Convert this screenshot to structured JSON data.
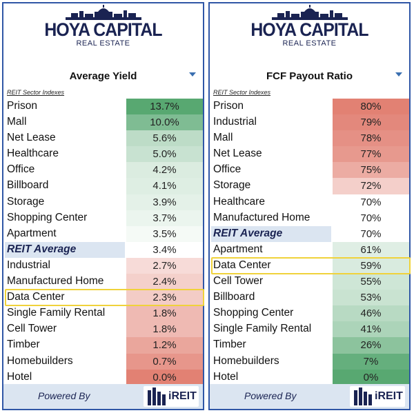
{
  "brand": {
    "title": "HOYA CAPITAL",
    "subtitle": "REAL ESTATE",
    "powered_by": "Powered By",
    "ireit": "iREIT"
  },
  "section_label": "REIT Sector Indexes",
  "colors": {
    "border": "#2f56a6",
    "green_max": "#4fa36a",
    "red_max": "#e07a6c",
    "avg_row": "#dbe5f1",
    "highlight": "#f0d23a",
    "footer": "#dbe5f1"
  },
  "chart_data": [
    {
      "type": "table",
      "title": "Average Yield",
      "color_scale": "high-green",
      "rows": [
        {
          "name": "Prison",
          "value": 13.7,
          "label": "13.7%"
        },
        {
          "name": "Mall",
          "value": 10.0,
          "label": "10.0%"
        },
        {
          "name": "Net Lease",
          "value": 5.6,
          "label": "5.6%"
        },
        {
          "name": "Healthcare",
          "value": 5.0,
          "label": "5.0%"
        },
        {
          "name": "Office",
          "value": 4.2,
          "label": "4.2%"
        },
        {
          "name": "Billboard",
          "value": 4.1,
          "label": "4.1%"
        },
        {
          "name": "Storage",
          "value": 3.9,
          "label": "3.9%"
        },
        {
          "name": "Shopping Center",
          "value": 3.7,
          "label": "3.7%"
        },
        {
          "name": "Apartment",
          "value": 3.5,
          "label": "3.5%"
        },
        {
          "name": "REIT Average",
          "value": 3.4,
          "label": "3.4%",
          "average": true
        },
        {
          "name": "Industrial",
          "value": 2.7,
          "label": "2.7%"
        },
        {
          "name": "Manufactured Home",
          "value": 2.4,
          "label": "2.4%"
        },
        {
          "name": "Data Center",
          "value": 2.3,
          "label": "2.3%",
          "highlight": true
        },
        {
          "name": "Single Family Rental",
          "value": 1.8,
          "label": "1.8%"
        },
        {
          "name": "Cell Tower",
          "value": 1.8,
          "label": "1.8%"
        },
        {
          "name": "Timber",
          "value": 1.2,
          "label": "1.2%"
        },
        {
          "name": "Homebuilders",
          "value": 0.7,
          "label": "0.7%"
        },
        {
          "name": "Hotel",
          "value": 0.0,
          "label": "0.0%"
        }
      ]
    },
    {
      "type": "table",
      "title": "FCF Payout Ratio",
      "color_scale": "high-red",
      "rows": [
        {
          "name": "Prison",
          "value": 80,
          "label": "80%"
        },
        {
          "name": "Industrial",
          "value": 79,
          "label": "79%"
        },
        {
          "name": "Mall",
          "value": 78,
          "label": "78%"
        },
        {
          "name": "Net Lease",
          "value": 77,
          "label": "77%"
        },
        {
          "name": "Office",
          "value": 75,
          "label": "75%"
        },
        {
          "name": "Storage",
          "value": 72,
          "label": "72%"
        },
        {
          "name": "Healthcare",
          "value": 70,
          "label": "70%"
        },
        {
          "name": "Manufactured Home",
          "value": 70,
          "label": "70%"
        },
        {
          "name": "REIT Average",
          "value": 70,
          "label": "70%",
          "average": true
        },
        {
          "name": "Apartment",
          "value": 61,
          "label": "61%"
        },
        {
          "name": "Data Center",
          "value": 59,
          "label": "59%",
          "highlight": true
        },
        {
          "name": "Cell Tower",
          "value": 55,
          "label": "55%"
        },
        {
          "name": "Billboard",
          "value": 53,
          "label": "53%"
        },
        {
          "name": "Shopping Center",
          "value": 46,
          "label": "46%"
        },
        {
          "name": "Single Family Rental",
          "value": 41,
          "label": "41%"
        },
        {
          "name": "Timber",
          "value": 26,
          "label": "26%"
        },
        {
          "name": "Homebuilders",
          "value": 7,
          "label": "7%"
        },
        {
          "name": "Hotel",
          "value": 0,
          "label": "0%"
        }
      ]
    }
  ]
}
